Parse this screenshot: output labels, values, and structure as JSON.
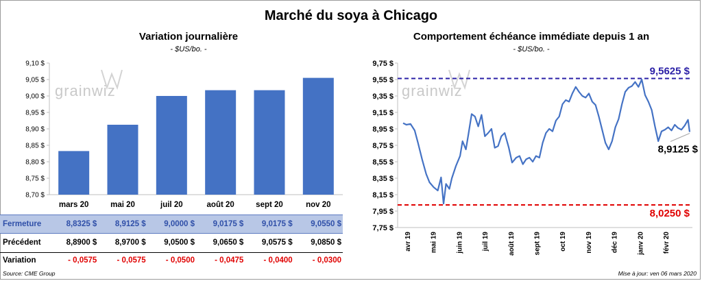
{
  "title": "Marché du soya à Chicago",
  "left": {
    "subtitle": "Variation journalière",
    "unit": "- $US/bo. -",
    "watermark": "grainwiz"
  },
  "right": {
    "subtitle": "Comportement échéance immédiate depuis 1 an",
    "unit": "- $US/bo. -",
    "watermark": "grainwiz",
    "high_label": "9,5625 $",
    "low_label": "8,0250 $",
    "last_label": "8,9125 $"
  },
  "table": {
    "rows": [
      {
        "label": "Fermeture",
        "values": [
          "8,8325 $",
          "8,9125 $",
          "9,0000 $",
          "9,0175 $",
          "9,0175 $",
          "9,0550 $"
        ]
      },
      {
        "label": "Précédent",
        "values": [
          "8,8900 $",
          "8,9700 $",
          "9,0500 $",
          "9,0650 $",
          "9,0575 $",
          "9,0850 $"
        ]
      },
      {
        "label": "Variation",
        "values": [
          "- 0,0575",
          "- 0,0575",
          "- 0,0500",
          "- 0,0475",
          "- 0,0400",
          "- 0,0300"
        ]
      }
    ]
  },
  "footer": {
    "source": "Source: CME Group",
    "updated": "Mise à jour: ven 06 mars 2020"
  },
  "colors": {
    "bar": "#4472c4",
    "line": "#4472c4",
    "high_line": "#2a1fa6",
    "low_line": "#e00000"
  },
  "chart_data": [
    {
      "type": "bar",
      "categories": [
        "mars 20",
        "mai 20",
        "juil 20",
        "août 20",
        "sept 20",
        "nov 20"
      ],
      "values": [
        8.8325,
        8.9125,
        9.0,
        9.0175,
        9.0175,
        9.055
      ],
      "ylim": [
        8.7,
        9.1
      ],
      "yticks": [
        8.7,
        8.75,
        8.8,
        8.85,
        8.9,
        8.95,
        9.0,
        9.05,
        9.1
      ],
      "ytick_labels": [
        "8,70 $",
        "8,75 $",
        "8,80 $",
        "8,85 $",
        "8,90 $",
        "8,95 $",
        "9,00 $",
        "9,05 $",
        "9,10 $"
      ],
      "grid": false
    },
    {
      "type": "line",
      "ylim": [
        7.75,
        9.75
      ],
      "yticks": [
        7.75,
        7.95,
        8.15,
        8.35,
        8.55,
        8.75,
        8.95,
        9.15,
        9.35,
        9.55,
        9.75
      ],
      "ytick_labels": [
        "7,75 $",
        "7,95 $",
        "8,15 $",
        "8,35 $",
        "8,55 $",
        "8,75 $",
        "8,95 $",
        "9,15 $",
        "9,35 $",
        "9,55 $",
        "9,75 $"
      ],
      "xtick_labels": [
        "avr 19",
        "mai 19",
        "juin 19",
        "juil 19",
        "août 19",
        "sept 19",
        "oct 19",
        "nov 19",
        "déc 19",
        "janv 20",
        "févr 20"
      ],
      "high": 9.5625,
      "low": 8.025,
      "last": 8.9125,
      "grid": false,
      "series": [
        {
          "x": [
            "2019-03-25",
            "2019-03-29",
            "2019-04-03",
            "2019-04-08",
            "2019-04-12",
            "2019-04-17",
            "2019-04-22",
            "2019-04-26",
            "2019-05-01",
            "2019-05-06",
            "2019-05-10",
            "2019-05-13",
            "2019-05-16",
            "2019-05-20",
            "2019-05-23",
            "2019-05-28",
            "2019-06-02",
            "2019-06-05",
            "2019-06-09",
            "2019-06-12",
            "2019-06-16",
            "2019-06-20",
            "2019-06-24",
            "2019-06-28",
            "2019-07-02",
            "2019-07-06",
            "2019-07-10",
            "2019-07-14",
            "2019-07-18",
            "2019-07-22",
            "2019-07-26",
            "2019-07-31",
            "2019-08-04",
            "2019-08-09",
            "2019-08-13",
            "2019-08-17",
            "2019-08-21",
            "2019-08-25",
            "2019-08-29",
            "2019-09-02",
            "2019-09-06",
            "2019-09-10",
            "2019-09-14",
            "2019-09-18",
            "2019-09-22",
            "2019-09-26",
            "2019-09-30",
            "2019-10-04",
            "2019-10-08",
            "2019-10-12",
            "2019-10-16",
            "2019-10-20",
            "2019-10-24",
            "2019-10-28",
            "2019-11-01",
            "2019-11-05",
            "2019-11-09",
            "2019-11-13",
            "2019-11-17",
            "2019-11-21",
            "2019-11-25",
            "2019-11-29",
            "2019-12-03",
            "2019-12-07",
            "2019-12-11",
            "2019-12-15",
            "2019-12-19",
            "2019-12-23",
            "2019-12-27",
            "2019-12-31",
            "2020-01-04",
            "2020-01-08",
            "2020-01-12",
            "2020-01-16",
            "2020-01-20",
            "2020-01-24",
            "2020-01-28",
            "2020-02-01",
            "2020-02-05",
            "2020-02-09",
            "2020-02-13",
            "2020-02-17",
            "2020-02-21",
            "2020-02-25",
            "2020-02-29",
            "2020-03-04",
            "2020-03-06"
          ],
          "values": [
            9.02,
            9.0,
            9.01,
            8.93,
            8.78,
            8.58,
            8.4,
            8.3,
            8.24,
            8.2,
            8.36,
            8.04,
            8.28,
            8.22,
            8.35,
            8.5,
            8.62,
            8.8,
            8.7,
            8.88,
            9.13,
            9.1,
            8.98,
            9.12,
            8.86,
            8.9,
            8.95,
            8.72,
            8.74,
            8.86,
            8.9,
            8.72,
            8.54,
            8.6,
            8.62,
            8.52,
            8.58,
            8.6,
            8.55,
            8.62,
            8.6,
            8.78,
            8.9,
            8.95,
            8.92,
            9.05,
            9.1,
            9.25,
            9.3,
            9.28,
            9.38,
            9.46,
            9.4,
            9.35,
            9.33,
            9.38,
            9.28,
            9.24,
            9.1,
            8.94,
            8.78,
            8.7,
            8.8,
            8.97,
            9.07,
            9.25,
            9.4,
            9.45,
            9.47,
            9.52,
            9.46,
            9.55,
            9.36,
            9.28,
            9.18,
            8.98,
            8.8,
            8.92,
            8.94,
            8.97,
            8.93,
            9.0,
            8.96,
            8.94,
            8.99,
            9.06,
            8.9125
          ]
        }
      ]
    }
  ]
}
